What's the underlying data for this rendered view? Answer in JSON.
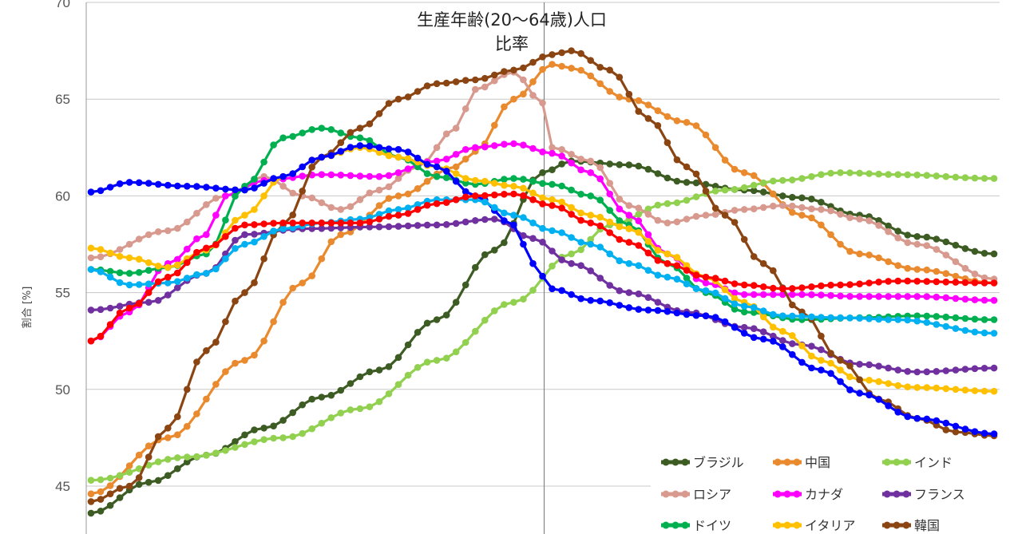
{
  "chart_data": {
    "type": "line",
    "title": [
      "生産年齢(20～64歳)人口",
      "比率"
    ],
    "xlabel": "",
    "ylabel": "割合 [%]",
    "ylim": [
      43,
      70
    ],
    "yticks": [
      45,
      50,
      55,
      60,
      65,
      70
    ],
    "xlim": [
      0,
      94
    ],
    "reference_line_x": 47,
    "grid": "horizontal",
    "legend_position": "bottom-right",
    "series": [
      {
        "name": "ブラジル",
        "color": "#3d5c23",
        "points": [
          [
            0,
            43.6
          ],
          [
            6,
            45.2
          ],
          [
            12,
            46.6
          ],
          [
            18,
            48.0
          ],
          [
            24,
            49.6
          ],
          [
            30,
            51.0
          ],
          [
            36,
            53.6
          ],
          [
            42,
            57.2
          ],
          [
            47,
            61.2
          ],
          [
            50,
            61.8
          ],
          [
            56,
            61.6
          ],
          [
            62,
            60.7
          ],
          [
            68,
            60.3
          ],
          [
            74,
            59.9
          ],
          [
            80,
            59.0
          ],
          [
            86,
            57.9
          ],
          [
            94,
            57.0
          ]
        ]
      },
      {
        "name": "中国",
        "color": "#e98a2e",
        "points": [
          [
            0,
            44.6
          ],
          [
            8,
            47.5
          ],
          [
            16,
            51.5
          ],
          [
            22,
            55.5
          ],
          [
            26,
            58.0
          ],
          [
            32,
            60.0
          ],
          [
            38,
            61.5
          ],
          [
            40,
            62.3
          ],
          [
            44,
            65.0
          ],
          [
            48,
            66.8
          ],
          [
            50,
            66.6
          ],
          [
            56,
            65.0
          ],
          [
            62,
            63.8
          ],
          [
            68,
            61.2
          ],
          [
            74,
            59.0
          ],
          [
            80,
            57.0
          ],
          [
            86,
            56.2
          ],
          [
            94,
            55.5
          ]
        ]
      },
      {
        "name": "インド",
        "color": "#92d050",
        "points": [
          [
            0,
            45.3
          ],
          [
            10,
            46.5
          ],
          [
            20,
            47.5
          ],
          [
            28,
            49.0
          ],
          [
            36,
            51.5
          ],
          [
            44,
            54.5
          ],
          [
            50,
            57.0
          ],
          [
            54,
            58.5
          ],
          [
            60,
            59.6
          ],
          [
            66,
            60.3
          ],
          [
            72,
            60.8
          ],
          [
            78,
            61.2
          ],
          [
            84,
            61.1
          ],
          [
            94,
            60.9
          ]
        ]
      },
      {
        "name": "ロシア",
        "color": "#d89a8e",
        "points": [
          [
            0,
            56.8
          ],
          [
            8,
            58.2
          ],
          [
            14,
            60.0
          ],
          [
            18,
            61.0
          ],
          [
            22,
            60.0
          ],
          [
            26,
            59.3
          ],
          [
            30,
            60.3
          ],
          [
            34,
            61.5
          ],
          [
            38,
            63.5
          ],
          [
            40,
            65.5
          ],
          [
            44,
            66.4
          ],
          [
            47,
            64.8
          ],
          [
            48,
            62.5
          ],
          [
            52,
            61.8
          ],
          [
            56,
            59.5
          ],
          [
            60,
            58.6
          ],
          [
            64,
            59.0
          ],
          [
            68,
            59.3
          ],
          [
            72,
            59.5
          ],
          [
            76,
            59.3
          ],
          [
            80,
            58.8
          ],
          [
            86,
            57.5
          ],
          [
            94,
            55.7
          ]
        ]
      },
      {
        "name": "カナダ",
        "color": "#ff00ff",
        "points": [
          [
            0,
            52.5
          ],
          [
            4,
            54.0
          ],
          [
            8,
            56.5
          ],
          [
            12,
            58.0
          ],
          [
            14,
            60.0
          ],
          [
            18,
            60.8
          ],
          [
            24,
            61.1
          ],
          [
            30,
            61.0
          ],
          [
            36,
            61.8
          ],
          [
            40,
            62.5
          ],
          [
            44,
            62.7
          ],
          [
            48,
            62.2
          ],
          [
            52,
            61.2
          ],
          [
            56,
            59.0
          ],
          [
            60,
            57.0
          ],
          [
            64,
            55.5
          ],
          [
            68,
            54.9
          ],
          [
            74,
            54.9
          ],
          [
            80,
            54.8
          ],
          [
            86,
            54.8
          ],
          [
            94,
            54.6
          ]
        ]
      },
      {
        "name": "フランス",
        "color": "#7030a0",
        "points": [
          [
            0,
            54.1
          ],
          [
            6,
            54.5
          ],
          [
            12,
            56.0
          ],
          [
            16,
            58.0
          ],
          [
            22,
            58.3
          ],
          [
            30,
            58.4
          ],
          [
            36,
            58.5
          ],
          [
            42,
            58.8
          ],
          [
            46,
            57.8
          ],
          [
            50,
            56.5
          ],
          [
            56,
            55.0
          ],
          [
            62,
            54.0
          ],
          [
            68,
            53.2
          ],
          [
            74,
            52.3
          ],
          [
            80,
            51.3
          ],
          [
            86,
            50.9
          ],
          [
            94,
            51.1
          ]
        ]
      },
      {
        "name": "ドイツ",
        "color": "#00b050",
        "points": [
          [
            0,
            56.2
          ],
          [
            4,
            56.0
          ],
          [
            8,
            56.3
          ],
          [
            12,
            57.0
          ],
          [
            16,
            60.5
          ],
          [
            20,
            63.0
          ],
          [
            24,
            63.5
          ],
          [
            28,
            63.0
          ],
          [
            32,
            62.0
          ],
          [
            36,
            61.0
          ],
          [
            40,
            60.6
          ],
          [
            44,
            60.9
          ],
          [
            48,
            60.6
          ],
          [
            52,
            60.0
          ],
          [
            56,
            58.5
          ],
          [
            60,
            56.5
          ],
          [
            64,
            55.0
          ],
          [
            68,
            54.0
          ],
          [
            74,
            53.6
          ],
          [
            80,
            53.7
          ],
          [
            86,
            53.8
          ],
          [
            94,
            53.6
          ]
        ]
      },
      {
        "name": "イタリア",
        "color": "#ffc000",
        "points": [
          [
            0,
            57.3
          ],
          [
            4,
            56.8
          ],
          [
            8,
            56.3
          ],
          [
            12,
            57.2
          ],
          [
            16,
            59.0
          ],
          [
            20,
            61.0
          ],
          [
            24,
            62.0
          ],
          [
            28,
            62.5
          ],
          [
            32,
            62.0
          ],
          [
            36,
            61.5
          ],
          [
            40,
            60.8
          ],
          [
            44,
            60.5
          ],
          [
            48,
            59.8
          ],
          [
            52,
            59.0
          ],
          [
            56,
            58.3
          ],
          [
            60,
            57.0
          ],
          [
            64,
            55.8
          ],
          [
            68,
            54.5
          ],
          [
            72,
            53.0
          ],
          [
            76,
            51.5
          ],
          [
            80,
            50.5
          ],
          [
            86,
            50.1
          ],
          [
            94,
            49.9
          ]
        ]
      },
      {
        "name": "韓国",
        "color": "#8b4513",
        "points": [
          [
            0,
            44.2
          ],
          [
            4,
            45.0
          ],
          [
            8,
            48.0
          ],
          [
            12,
            52.0
          ],
          [
            16,
            55.0
          ],
          [
            20,
            58.5
          ],
          [
            24,
            62.0
          ],
          [
            28,
            63.5
          ],
          [
            32,
            65.0
          ],
          [
            36,
            65.8
          ],
          [
            40,
            66.0
          ],
          [
            44,
            66.5
          ],
          [
            48,
            67.3
          ],
          [
            50,
            67.5
          ],
          [
            54,
            66.5
          ],
          [
            58,
            64.0
          ],
          [
            62,
            61.5
          ],
          [
            66,
            59.0
          ],
          [
            70,
            56.5
          ],
          [
            74,
            54.0
          ],
          [
            78,
            51.5
          ],
          [
            82,
            49.5
          ],
          [
            86,
            48.5
          ],
          [
            90,
            47.8
          ],
          [
            94,
            47.6
          ]
        ]
      },
      {
        "name": "",
        "color": "#0000ff",
        "points": [
          [
            0,
            60.2
          ],
          [
            4,
            60.7
          ],
          [
            10,
            60.5
          ],
          [
            16,
            60.3
          ],
          [
            20,
            61.0
          ],
          [
            24,
            62.0
          ],
          [
            28,
            62.6
          ],
          [
            32,
            62.4
          ],
          [
            36,
            61.5
          ],
          [
            40,
            60.0
          ],
          [
            44,
            58.5
          ],
          [
            46,
            56.5
          ],
          [
            48,
            55.2
          ],
          [
            52,
            54.6
          ],
          [
            58,
            54.1
          ],
          [
            64,
            53.8
          ],
          [
            70,
            52.6
          ],
          [
            76,
            51.0
          ],
          [
            80,
            49.8
          ],
          [
            86,
            48.5
          ],
          [
            94,
            47.7
          ]
        ]
      },
      {
        "name": "",
        "color": "#00b0f0",
        "points": [
          [
            0,
            56.2
          ],
          [
            4,
            55.4
          ],
          [
            8,
            55.5
          ],
          [
            12,
            56.0
          ],
          [
            16,
            57.5
          ],
          [
            20,
            58.3
          ],
          [
            24,
            58.6
          ],
          [
            28,
            58.8
          ],
          [
            32,
            59.3
          ],
          [
            36,
            59.8
          ],
          [
            40,
            59.8
          ],
          [
            44,
            59.0
          ],
          [
            48,
            58.2
          ],
          [
            52,
            57.5
          ],
          [
            56,
            56.5
          ],
          [
            60,
            55.8
          ],
          [
            64,
            55.1
          ],
          [
            68,
            54.3
          ],
          [
            72,
            53.8
          ],
          [
            78,
            53.7
          ],
          [
            84,
            53.6
          ],
          [
            94,
            52.9
          ]
        ]
      },
      {
        "name": "",
        "color": "#ff0000",
        "points": [
          [
            0,
            52.5
          ],
          [
            4,
            54.2
          ],
          [
            8,
            55.8
          ],
          [
            12,
            57.3
          ],
          [
            16,
            58.5
          ],
          [
            20,
            58.6
          ],
          [
            24,
            58.6
          ],
          [
            28,
            58.6
          ],
          [
            32,
            59.0
          ],
          [
            36,
            59.6
          ],
          [
            40,
            60.0
          ],
          [
            44,
            60.1
          ],
          [
            48,
            59.5
          ],
          [
            52,
            58.6
          ],
          [
            56,
            57.6
          ],
          [
            60,
            56.5
          ],
          [
            64,
            55.8
          ],
          [
            68,
            55.4
          ],
          [
            72,
            55.2
          ],
          [
            78,
            55.4
          ],
          [
            84,
            55.6
          ],
          [
            94,
            55.5
          ]
        ]
      }
    ]
  }
}
